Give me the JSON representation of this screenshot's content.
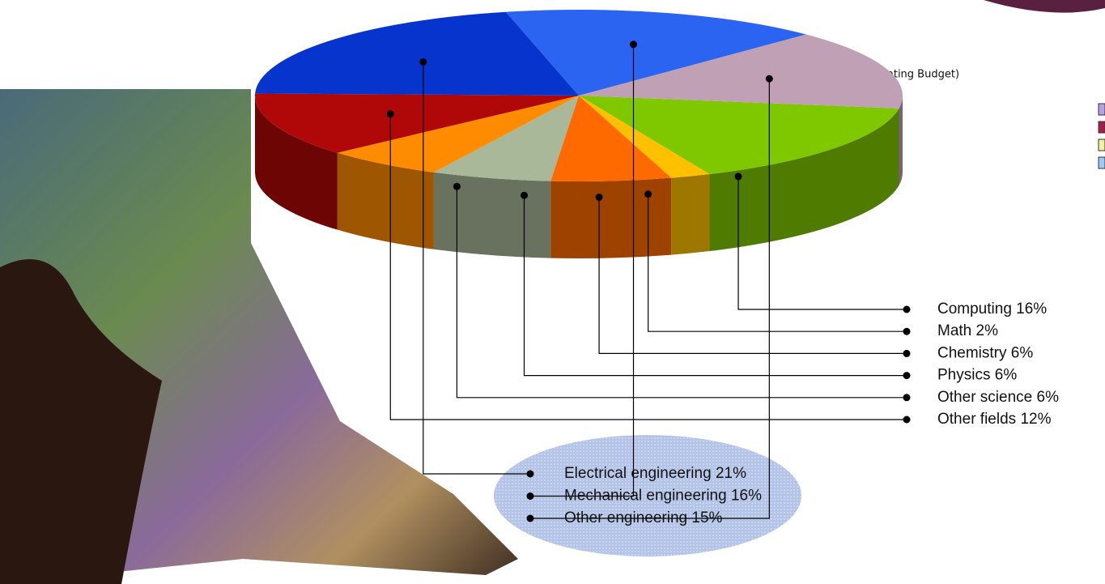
{
  "chart_data": {
    "type": "pie3d",
    "subtitle": "(Operating Budget)",
    "categories": [
      "Computing",
      "Math",
      "Chemistry",
      "Physics",
      "Other science",
      "Other fields",
      "Electrical engineering",
      "Mechanical engineering",
      "Other engineering"
    ],
    "values": [
      16,
      2,
      6,
      6,
      6,
      12,
      21,
      16,
      15
    ],
    "value_labels": [
      "16%",
      "2%",
      "6%",
      "6%",
      "6%",
      "12%",
      "21%",
      "16%",
      "15%"
    ],
    "colors": [
      "#7fc800",
      "#ffc000",
      "#ff6a00",
      "#a8b898",
      "#ff8c00",
      "#b00808",
      "#0634cc",
      "#2a64f0",
      "#c0a0b4"
    ]
  }
}
